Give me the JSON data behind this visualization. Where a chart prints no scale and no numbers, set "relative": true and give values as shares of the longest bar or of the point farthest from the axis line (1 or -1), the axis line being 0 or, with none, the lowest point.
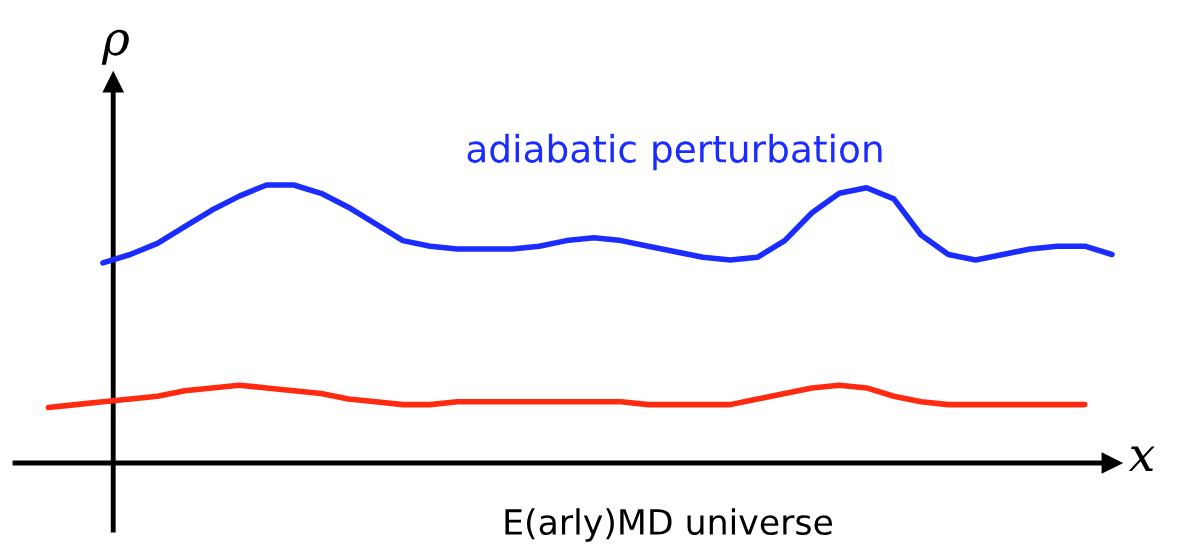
{
  "chart_data": {
    "type": "line",
    "relative": true,
    "xlabel": "x",
    "ylabel": "ρ",
    "categories": [
      null,
      null,
      null,
      null,
      null,
      null,
      null,
      null,
      null,
      null,
      null,
      null,
      null,
      null,
      null,
      null,
      null,
      null,
      null,
      null,
      null,
      null,
      null,
      null,
      null,
      null,
      null,
      null,
      null,
      null,
      null,
      null,
      null,
      null,
      null,
      null,
      null,
      null,
      null,
      null
    ],
    "series": [
      {
        "name": "adiabatic perturbation",
        "color": "#1a2cff",
        "values": [
          null,
          null,
          0.72,
          0.75,
          0.79,
          0.85,
          0.91,
          0.96,
          1.0,
          1.0,
          0.97,
          0.92,
          0.86,
          0.8,
          0.78,
          0.77,
          0.77,
          0.77,
          0.78,
          0.8,
          0.81,
          0.8,
          0.78,
          0.76,
          0.74,
          0.73,
          0.74,
          0.8,
          0.9,
          0.97,
          0.99,
          0.95,
          0.82,
          0.75,
          0.73,
          0.75,
          0.77,
          0.78,
          0.78,
          0.75
        ]
      },
      {
        "color": "#ff2a10",
        "values": [
          0.2,
          0.21,
          0.22,
          0.23,
          0.24,
          0.26,
          0.27,
          0.28,
          0.27,
          0.26,
          0.25,
          0.23,
          0.22,
          0.21,
          0.21,
          0.22,
          0.22,
          0.22,
          0.22,
          0.22,
          0.22,
          0.22,
          0.21,
          0.21,
          0.21,
          0.21,
          0.23,
          0.25,
          0.27,
          0.28,
          0.27,
          0.24,
          0.22,
          0.21,
          0.21,
          0.21,
          0.21,
          0.21,
          0.21,
          null
        ]
      }
    ],
    "annotations": [
      "E(arly)MD universe"
    ]
  }
}
